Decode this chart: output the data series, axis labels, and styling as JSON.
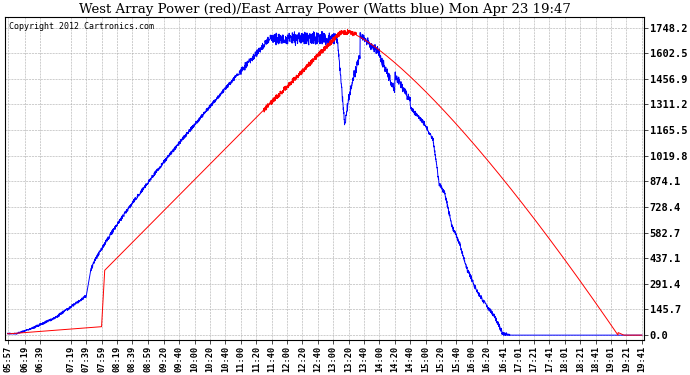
{
  "title": "West Array Power (red)/East Array Power (Watts blue) Mon Apr 23 19:47",
  "copyright": "Copyright 2012 Cartronics.com",
  "background_color": "#ffffff",
  "plot_background": "#ffffff",
  "grid_color": "#aaaaaa",
  "ytick_labels": [
    "0.0",
    "145.7",
    "291.4",
    "437.1",
    "582.7",
    "728.4",
    "874.1",
    "1019.8",
    "1165.5",
    "1311.2",
    "1456.9",
    "1602.5",
    "1748.2"
  ],
  "ytick_values": [
    0.0,
    145.7,
    291.4,
    437.1,
    582.7,
    728.4,
    874.1,
    1019.8,
    1165.5,
    1311.2,
    1456.9,
    1602.5,
    1748.2
  ],
  "ymax": 1748.2,
  "ymin": 0.0,
  "red_color": "#ff0000",
  "blue_color": "#0000ff",
  "xtick_labels": [
    "05:57",
    "06:19",
    "06:39",
    "07:19",
    "07:39",
    "07:59",
    "08:19",
    "08:39",
    "08:59",
    "09:20",
    "09:40",
    "10:00",
    "10:20",
    "10:40",
    "11:00",
    "11:20",
    "11:40",
    "12:00",
    "12:20",
    "12:40",
    "13:00",
    "13:20",
    "13:40",
    "14:00",
    "14:20",
    "14:40",
    "15:00",
    "15:20",
    "15:40",
    "16:00",
    "16:20",
    "16:41",
    "17:01",
    "17:21",
    "17:41",
    "18:01",
    "18:21",
    "18:41",
    "19:01",
    "19:21",
    "19:41"
  ]
}
